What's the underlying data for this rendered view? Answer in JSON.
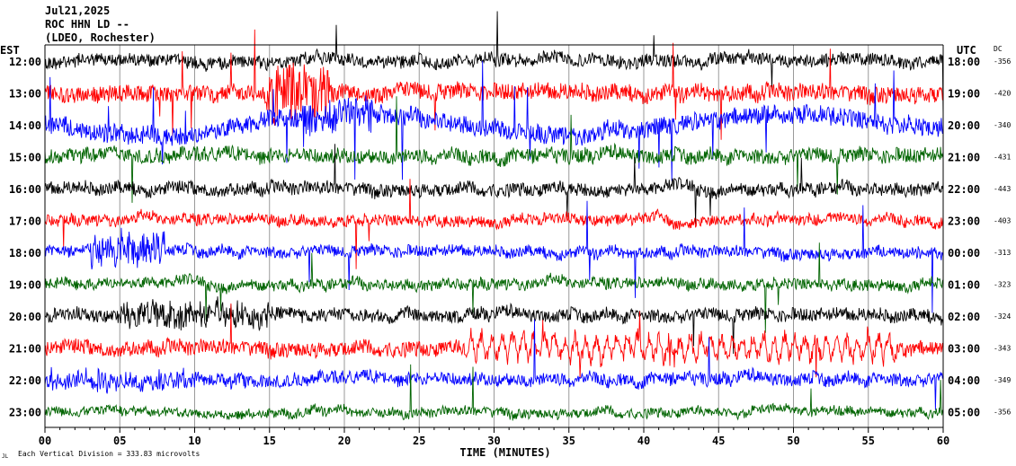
{
  "header": {
    "line1": "Jul21,2025",
    "line2": "ROC HHN LD --",
    "line3": "(LDEO, Rochester)"
  },
  "left_axis_label": "EST",
  "right_axis_label": "UTC",
  "dc_label": "DC",
  "footer": {
    "scale_note": "Each Vertical Division =  333.83 microvolts",
    "corner_mark": "JL"
  },
  "chart_data": {
    "type": "line",
    "title": "",
    "xlabel": "TIME (MINUTES)",
    "ylabel": "",
    "xlim": [
      0,
      60
    ],
    "x_ticks": [
      "00",
      "05",
      "10",
      "15",
      "20",
      "25",
      "30",
      "35",
      "40",
      "45",
      "50",
      "55",
      "60"
    ],
    "grid": "vertical lines every 5 minutes",
    "series": [
      {
        "est": "12:00",
        "utc": "18:00",
        "dc": "-356",
        "color": "#000000"
      },
      {
        "est": "13:00",
        "utc": "19:00",
        "dc": "-420",
        "color": "#ff0000"
      },
      {
        "est": "14:00",
        "utc": "20:00",
        "dc": "-340",
        "color": "#0000ff"
      },
      {
        "est": "15:00",
        "utc": "21:00",
        "dc": "-431",
        "color": "#006400"
      },
      {
        "est": "16:00",
        "utc": "22:00",
        "dc": "-443",
        "color": "#000000"
      },
      {
        "est": "17:00",
        "utc": "23:00",
        "dc": "-403",
        "color": "#ff0000"
      },
      {
        "est": "18:00",
        "utc": "00:00",
        "dc": "-313",
        "color": "#0000ff"
      },
      {
        "est": "19:00",
        "utc": "01:00",
        "dc": "-323",
        "color": "#006400"
      },
      {
        "est": "20:00",
        "utc": "02:00",
        "dc": "-324",
        "color": "#000000"
      },
      {
        "est": "21:00",
        "utc": "03:00",
        "dc": "-343",
        "color": "#ff0000"
      },
      {
        "est": "22:00",
        "utc": "04:00",
        "dc": "-349",
        "color": "#0000ff"
      },
      {
        "est": "23:00",
        "utc": "05:00",
        "dc": "-356",
        "color": "#006400"
      }
    ]
  }
}
